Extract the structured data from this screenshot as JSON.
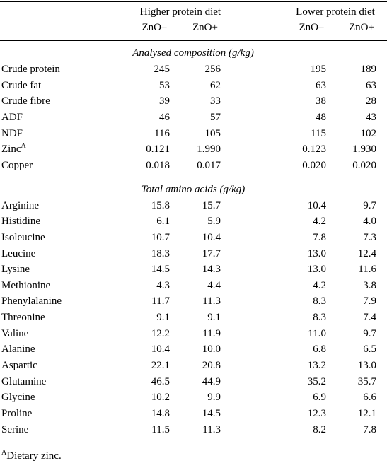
{
  "header": {
    "groups": [
      "Higher protein diet",
      "Lower protein diet"
    ],
    "columns": [
      "ZnO–",
      "ZnO+",
      "ZnO–",
      "ZnO+"
    ]
  },
  "sections": [
    {
      "title": "Analysed composition (g/kg)",
      "rows": [
        {
          "label": "Crude protein",
          "values": [
            "245",
            "256",
            "195",
            "189"
          ]
        },
        {
          "label": "Crude fat",
          "values": [
            "53",
            "62",
            "63",
            "63"
          ]
        },
        {
          "label": "Crude fibre",
          "values": [
            "39",
            "33",
            "38",
            "28"
          ]
        },
        {
          "label": "ADF",
          "values": [
            "46",
            "57",
            "48",
            "43"
          ]
        },
        {
          "label": "NDF",
          "values": [
            "116",
            "105",
            "115",
            "102"
          ]
        },
        {
          "label": "Zinc",
          "note": "A",
          "values": [
            "0.121",
            "1.990",
            "0.123",
            "1.930"
          ]
        },
        {
          "label": "Copper",
          "values": [
            "0.018",
            "0.017",
            "0.020",
            "0.020"
          ]
        }
      ]
    },
    {
      "title": "Total amino acids (g/kg)",
      "rows": [
        {
          "label": "Arginine",
          "values": [
            "15.8",
            "15.7",
            "10.4",
            "9.7"
          ]
        },
        {
          "label": "Histidine",
          "values": [
            "6.1",
            "5.9",
            "4.2",
            "4.0"
          ]
        },
        {
          "label": "Isoleucine",
          "values": [
            "10.7",
            "10.4",
            "7.8",
            "7.3"
          ]
        },
        {
          "label": "Leucine",
          "values": [
            "18.3",
            "17.7",
            "13.0",
            "12.4"
          ]
        },
        {
          "label": "Lysine",
          "values": [
            "14.5",
            "14.3",
            "13.0",
            "11.6"
          ]
        },
        {
          "label": "Methionine",
          "values": [
            "4.3",
            "4.4",
            "4.2",
            "3.8"
          ]
        },
        {
          "label": "Phenylalanine",
          "values": [
            "11.7",
            "11.3",
            "8.3",
            "7.9"
          ]
        },
        {
          "label": "Threonine",
          "values": [
            "9.1",
            "9.1",
            "8.3",
            "7.4"
          ]
        },
        {
          "label": "Valine",
          "values": [
            "12.2",
            "11.9",
            "11.0",
            "9.7"
          ]
        },
        {
          "label": "Alanine",
          "values": [
            "10.4",
            "10.0",
            "6.8",
            "6.5"
          ]
        },
        {
          "label": "Aspartic",
          "values": [
            "22.1",
            "20.8",
            "13.2",
            "13.0"
          ]
        },
        {
          "label": "Glutamine",
          "values": [
            "46.5",
            "44.9",
            "35.2",
            "35.7"
          ]
        },
        {
          "label": "Glycine",
          "values": [
            "10.2",
            "9.9",
            "6.9",
            "6.6"
          ]
        },
        {
          "label": "Proline",
          "values": [
            "14.8",
            "14.5",
            "12.3",
            "12.1"
          ]
        },
        {
          "label": "Serine",
          "values": [
            "11.5",
            "11.3",
            "8.2",
            "7.8"
          ]
        }
      ]
    }
  ],
  "footnote": {
    "mark": "A",
    "text": "Dietary zinc."
  }
}
